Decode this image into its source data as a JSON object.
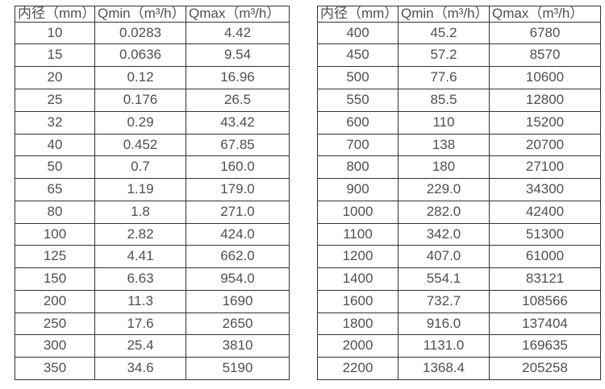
{
  "page": {
    "background": "#ffffff",
    "border_color": "#333333",
    "text_color": "#4f4f4f"
  },
  "tables": [
    {
      "name": "small-diameters",
      "headers": [
        "内径（mm）",
        "Qmin（m³/h）",
        "Qmax（m³/h）"
      ],
      "rows": [
        [
          "10",
          "0.0283",
          "4.42"
        ],
        [
          "15",
          "0.0636",
          "9.54"
        ],
        [
          "20",
          "0.12",
          "16.96"
        ],
        [
          "25",
          "0.176",
          "26.5"
        ],
        [
          "32",
          "0.29",
          "43.42"
        ],
        [
          "40",
          "0.452",
          "67.85"
        ],
        [
          "50",
          "0.7",
          "160.0"
        ],
        [
          "65",
          "1.19",
          "179.0"
        ],
        [
          "80",
          "1.8",
          "271.0"
        ],
        [
          "100",
          "2.82",
          "424.0"
        ],
        [
          "125",
          "4.41",
          "662.0"
        ],
        [
          "150",
          "6.63",
          "954.0"
        ],
        [
          "200",
          "11.3",
          "1690"
        ],
        [
          "250",
          "17.6",
          "2650"
        ],
        [
          "300",
          "25.4",
          "3810"
        ],
        [
          "350",
          "34.6",
          "5190"
        ]
      ]
    },
    {
      "name": "large-diameters",
      "headers": [
        "内径（mm）",
        "Qmin（m³/h）",
        "Qmax（m³/h）"
      ],
      "rows": [
        [
          "400",
          "45.2",
          "6780"
        ],
        [
          "450",
          "57.2",
          "8570"
        ],
        [
          "500",
          "77.6",
          "10600"
        ],
        [
          "550",
          "85.5",
          "12800"
        ],
        [
          "600",
          "110",
          "15200"
        ],
        [
          "700",
          "138",
          "20700"
        ],
        [
          "800",
          "180",
          "27100"
        ],
        [
          "900",
          "229.0",
          "34300"
        ],
        [
          "1000",
          "282.0",
          "42400"
        ],
        [
          "1100",
          "342.0",
          "51300"
        ],
        [
          "1200",
          "407.0",
          "61000"
        ],
        [
          "1400",
          "554.1",
          "83121"
        ],
        [
          "1600",
          "732.7",
          "108566"
        ],
        [
          "1800",
          "916.0",
          "137404"
        ],
        [
          "2000",
          "1131.0",
          "169635"
        ],
        [
          "2200",
          "1368.4",
          "205258"
        ]
      ]
    }
  ]
}
